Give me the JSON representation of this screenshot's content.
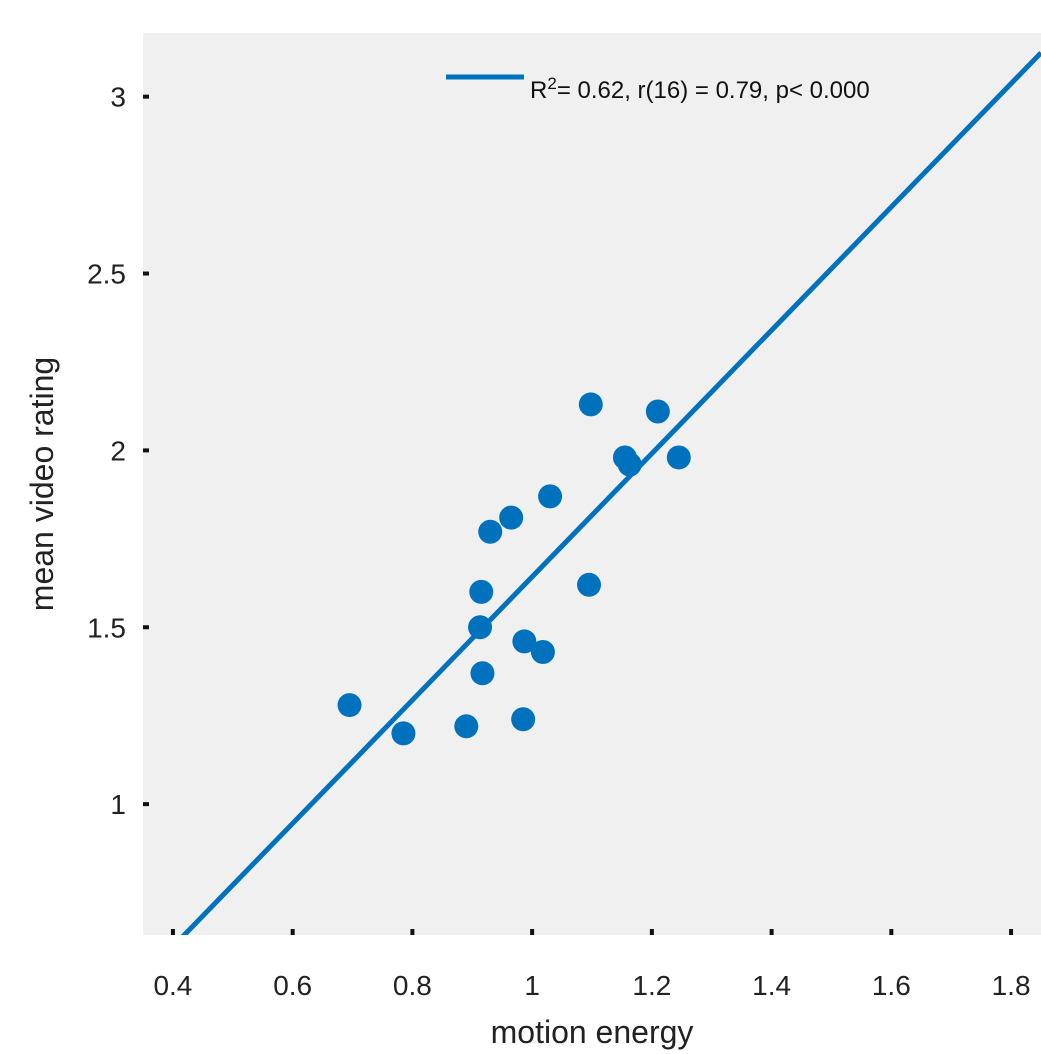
{
  "chart_data": {
    "type": "scatter",
    "xlabel": "motion energy",
    "ylabel": "mean video rating",
    "xlim": [
      0.35,
      1.85
    ],
    "ylim": [
      0.63,
      3.18
    ],
    "x_ticks": [
      0.4,
      0.6,
      0.8,
      1,
      1.2,
      1.4,
      1.6,
      1.8
    ],
    "y_ticks": [
      1,
      1.5,
      2,
      2.5,
      3
    ],
    "x_tick_labels": [
      "0.4",
      "0.6",
      "0.8",
      "1",
      "1.2",
      "1.4",
      "1.6",
      "1.8"
    ],
    "y_tick_labels": [
      "1",
      "1.5",
      "2",
      "2.5",
      "3"
    ],
    "grid": false,
    "background": "#f0f0f0",
    "series": [
      {
        "color": "#0072bd",
        "x": [
          0.695,
          0.785,
          0.89,
          0.913,
          0.915,
          0.917,
          0.93,
          0.965,
          0.985,
          0.987,
          1.018,
          1.03,
          1.095,
          1.098,
          1.155,
          1.163,
          1.21,
          1.245
        ],
        "y": [
          1.28,
          1.2,
          1.22,
          1.5,
          1.6,
          1.37,
          1.77,
          1.81,
          1.24,
          1.46,
          1.43,
          1.87,
          1.62,
          2.13,
          1.98,
          1.96,
          2.11,
          1.98
        ]
      }
    ],
    "fit_line": {
      "color": "#0072bd",
      "x": [
        0.4,
        1.85
      ],
      "y": [
        0.597,
        3.124
      ]
    },
    "legend": {
      "position": "top-right",
      "label_prefix": "R",
      "label_sup": "2",
      "label_suffix": "= 0.62, r(16) = 0.79, p< 0.000"
    }
  }
}
